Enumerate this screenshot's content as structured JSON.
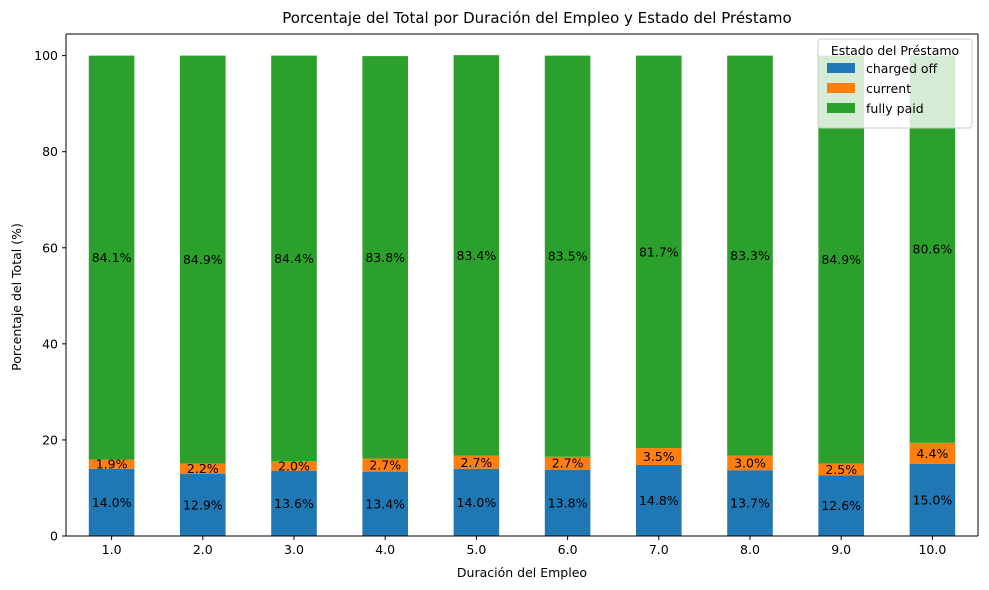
{
  "chart_data": {
    "type": "bar",
    "stacked": true,
    "title": "Porcentaje del Total por Duración del Empleo y Estado del Préstamo",
    "xlabel": "Duración del Empleo",
    "ylabel": "Porcentaje del Total (%)",
    "ylim": [
      0,
      104.5
    ],
    "yticks": [
      "0",
      "20",
      "40",
      "60",
      "80",
      "100"
    ],
    "categories": [
      "1.0",
      "2.0",
      "3.0",
      "4.0",
      "5.0",
      "6.0",
      "7.0",
      "8.0",
      "9.0",
      "10.0"
    ],
    "series": [
      {
        "name": "charged off",
        "color": "#1f77b4",
        "values": [
          14.0,
          12.9,
          13.6,
          13.4,
          14.0,
          13.8,
          14.8,
          13.7,
          12.6,
          15.0
        ],
        "labels": [
          "14.0%",
          "12.9%",
          "13.6%",
          "13.4%",
          "14.0%",
          "13.8%",
          "14.8%",
          "13.7%",
          "12.6%",
          "15.0%"
        ]
      },
      {
        "name": "current",
        "color": "#ff7f0e",
        "values": [
          1.9,
          2.2,
          2.0,
          2.7,
          2.7,
          2.7,
          3.5,
          3.0,
          2.5,
          4.4
        ],
        "labels": [
          "1.9%",
          "2.2%",
          "2.0%",
          "2.7%",
          "2.7%",
          "2.7%",
          "3.5%",
          "3.0%",
          "2.5%",
          "4.4%"
        ]
      },
      {
        "name": "fully paid",
        "color": "#2ca02c",
        "values": [
          84.1,
          84.9,
          84.4,
          83.8,
          83.4,
          83.5,
          81.7,
          83.3,
          84.9,
          80.6
        ],
        "labels": [
          "84.1%",
          "84.9%",
          "84.4%",
          "83.8%",
          "83.4%",
          "83.5%",
          "81.7%",
          "83.3%",
          "84.9%",
          "80.6%"
        ]
      }
    ],
    "legend": {
      "title": "Estado del Préstamo",
      "position": "top-right"
    },
    "grid": false
  }
}
